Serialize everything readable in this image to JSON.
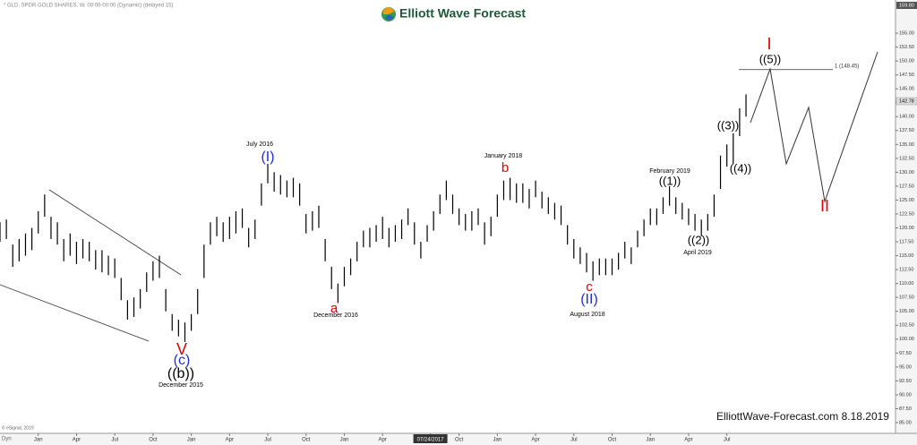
{
  "header": {
    "symbol_info": "* GLD, SPDR GOLD SHARES, W, 00:00-00:00 (Dynamic) (delayed 15)",
    "logo": "Elliott Wave Forecast",
    "footer": "ElliottWave-Forecast.com 8.18.2019",
    "copyright": "© eSignal, 2019",
    "mode": "Dyn"
  },
  "chart_data": {
    "type": "ohlc",
    "grid": false,
    "color": "#000000",
    "ylim": [
      83.23,
      159.35
    ],
    "xlim": [
      0,
      140.45
    ],
    "yticks": [
      {
        "value": 85,
        "label": "85.00"
      },
      {
        "value": 87.5,
        "label": "87.50"
      },
      {
        "value": 90,
        "label": "90.00"
      },
      {
        "value": 92.5,
        "label": "92.50"
      },
      {
        "value": 95,
        "label": "95.00"
      },
      {
        "value": 97.5,
        "label": "97.50"
      },
      {
        "value": 100,
        "label": "100.00"
      },
      {
        "value": 102.5,
        "label": "102.50"
      },
      {
        "value": 105,
        "label": "105.00"
      },
      {
        "value": 107.5,
        "label": "107.50"
      },
      {
        "value": 110,
        "label": "110.00"
      },
      {
        "value": 112.5,
        "label": "112.50"
      },
      {
        "value": 115,
        "label": "115.00"
      },
      {
        "value": 117.5,
        "label": "117.50"
      },
      {
        "value": 120,
        "label": "120.00"
      },
      {
        "value": 122.5,
        "label": "122.50"
      },
      {
        "value": 125,
        "label": "125.00"
      },
      {
        "value": 127.5,
        "label": "127.50"
      },
      {
        "value": 130,
        "label": "130.00"
      },
      {
        "value": 132.5,
        "label": "132.50"
      },
      {
        "value": 135,
        "label": "135.00"
      },
      {
        "value": 137.5,
        "label": "137.50"
      },
      {
        "value": 140,
        "label": "140.00"
      },
      {
        "value": 142.5,
        "label": "142.50"
      },
      {
        "value": 145,
        "label": "145.00"
      },
      {
        "value": 147.5,
        "label": "147.50"
      },
      {
        "value": 150,
        "label": "150.00"
      },
      {
        "value": 152.5,
        "label": "152.50"
      },
      {
        "value": 155,
        "label": "155.00"
      }
    ],
    "xticks": [
      {
        "value": 6,
        "label": "Jan"
      },
      {
        "value": 12,
        "label": "Apr"
      },
      {
        "value": 18,
        "label": "Jul"
      },
      {
        "value": 24,
        "label": "Oct"
      },
      {
        "value": 30,
        "label": "Jan"
      },
      {
        "value": 36,
        "label": "Apr"
      },
      {
        "value": 42,
        "label": "Jul"
      },
      {
        "value": 48,
        "label": "Oct"
      },
      {
        "value": 54,
        "label": "Jan"
      },
      {
        "value": 60,
        "label": "Apr"
      },
      {
        "value": 67.5,
        "label": "07/24/2017"
      },
      {
        "value": 72,
        "label": "Oct"
      },
      {
        "value": 78,
        "label": "Jan"
      },
      {
        "value": 84,
        "label": "Apr"
      },
      {
        "value": 90,
        "label": "Jul"
      },
      {
        "value": 96,
        "label": "Oct"
      },
      {
        "value": 102,
        "label": "Jan"
      },
      {
        "value": 108,
        "label": "Apr"
      },
      {
        "value": 114,
        "label": "Jul"
      }
    ],
    "high": [
      121,
      121.5,
      117,
      118,
      119,
      120,
      123,
      126,
      122,
      121,
      118,
      119,
      117.5,
      118,
      117.5,
      116,
      116,
      115,
      114.5,
      111,
      107,
      107.5,
      109,
      112,
      114,
      115,
      109,
      104.5,
      103.5,
      103,
      104.5,
      109,
      117,
      121,
      122,
      121,
      122,
      123,
      123.5,
      120,
      121.5,
      128,
      131.5,
      130,
      129.5,
      128.5,
      129,
      128,
      122.5,
      123,
      124,
      118,
      113,
      110,
      113,
      114.5,
      117.5,
      119.5,
      120,
      120.5,
      122,
      120,
      120.5,
      121.5,
      123.5,
      121,
      117.5,
      120.5,
      123,
      126,
      128.5,
      126,
      123.5,
      122.5,
      123,
      123.5,
      121,
      122,
      126,
      128.5,
      129,
      128,
      128,
      127,
      128.5,
      126.5,
      125.5,
      124.5,
      124,
      120.5,
      118,
      116.5,
      115.5,
      114,
      114.5,
      114.5,
      114.5,
      115.5,
      117.5,
      116.5,
      119.5,
      121.5,
      123.5,
      123.5,
      125.5,
      127.5,
      125.5,
      124.5,
      123.5,
      122.5,
      121.5,
      122.5,
      126,
      133,
      135,
      137,
      141.5,
      144
    ],
    "low": [
      117.5,
      118,
      113,
      114,
      115,
      116,
      119,
      122,
      118,
      117,
      114,
      115,
      113.5,
      114.5,
      114,
      112.5,
      112,
      111.5,
      111,
      107,
      103.5,
      104,
      105.5,
      108.5,
      110.5,
      111,
      105,
      101.5,
      100.5,
      99.5,
      101.5,
      104.5,
      111,
      117,
      118.5,
      117.5,
      118,
      119,
      120,
      116.5,
      118,
      124,
      128,
      126.5,
      126,
      125.5,
      125.5,
      124,
      119,
      119.5,
      120,
      114,
      109,
      106.5,
      109.5,
      111.5,
      114,
      116.5,
      116.5,
      117.5,
      118,
      116.5,
      117.5,
      118,
      120.5,
      117,
      114.5,
      117.5,
      119.5,
      122.5,
      125,
      122.5,
      120.5,
      119.5,
      119.5,
      120.5,
      117,
      118.5,
      122,
      125,
      125,
      124.5,
      124.5,
      123.5,
      125.5,
      123.5,
      122.5,
      121.5,
      120.5,
      117,
      114.5,
      113.5,
      112,
      110.5,
      111.5,
      111.5,
      111.5,
      112.5,
      114.5,
      113.5,
      116.5,
      118.5,
      120.5,
      120.5,
      122.5,
      124,
      122.5,
      121.5,
      120.5,
      119.5,
      118.5,
      119.5,
      122,
      127,
      131,
      131.5,
      136.5,
      140
    ],
    "last_price": 142.78,
    "axis_top": {
      "value": 159.8,
      "label": "159.80"
    },
    "fib_level": {
      "value": 148.45,
      "label": "1 (148.45)"
    },
    "annotations": [
      {
        "text": "July 2016",
        "color": "#000000"
      },
      {
        "text": "(I)",
        "color": "#1f2fd8"
      },
      {
        "text": "a",
        "color": "#e00000"
      },
      {
        "text": "December 2016",
        "color": "#000000"
      },
      {
        "text": "January 2018",
        "color": "#000000"
      },
      {
        "text": "b",
        "color": "#e00000"
      },
      {
        "text": "c",
        "color": "#e00000"
      },
      {
        "text": "(II)",
        "color": "#1f2fd8"
      },
      {
        "text": "August 2018",
        "color": "#000000"
      },
      {
        "text": "February 2019",
        "color": "#000000"
      },
      {
        "text": "((1))",
        "color": "#000000"
      },
      {
        "text": "((2))",
        "color": "#000000"
      },
      {
        "text": "April 2019",
        "color": "#000000"
      },
      {
        "text": "((3))",
        "color": "#000000"
      },
      {
        "text": "((4))",
        "color": "#000000"
      },
      {
        "text": "I",
        "color": "#e00000"
      },
      {
        "text": "((5))",
        "color": "#000000"
      },
      {
        "text": "II",
        "color": "#e00000"
      },
      {
        "text": "V",
        "color": "#e00000"
      },
      {
        "text": "(c)",
        "color": "#1f2fd8"
      },
      {
        "text": "((b))",
        "color": "#000000"
      },
      {
        "text": "December 2015",
        "color": "#000000"
      }
    ]
  }
}
